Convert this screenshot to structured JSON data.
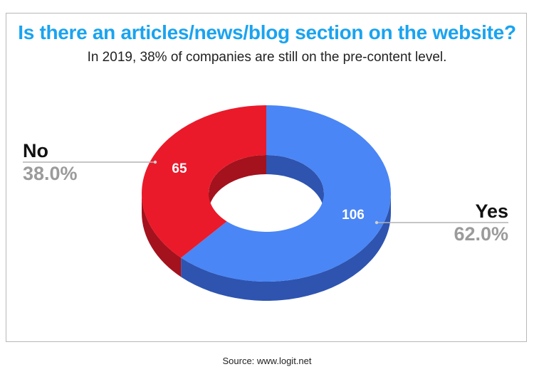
{
  "source": "Source: www.logit.net",
  "colors": {
    "title": "#1aa3f0",
    "no_top": "#ea1a2a",
    "no_side": "#a3121d",
    "yes_top": "#4a86f5",
    "yes_side": "#2e54b0",
    "label_value": "#ffffff",
    "pct_text": "#9b9b9b",
    "leader": "#b3b3b3"
  },
  "chart_data": {
    "type": "pie",
    "variant": "3d-donut",
    "title": "Is there an articles/news/blog section on the website?",
    "subtitle": "In 2019, 38% of companies are still on the pre-content level.",
    "slices": [
      {
        "name": "Yes",
        "value": 106,
        "percent_label": "62.0%"
      },
      {
        "name": "No",
        "value": 65,
        "percent_label": "38.0%"
      }
    ]
  }
}
